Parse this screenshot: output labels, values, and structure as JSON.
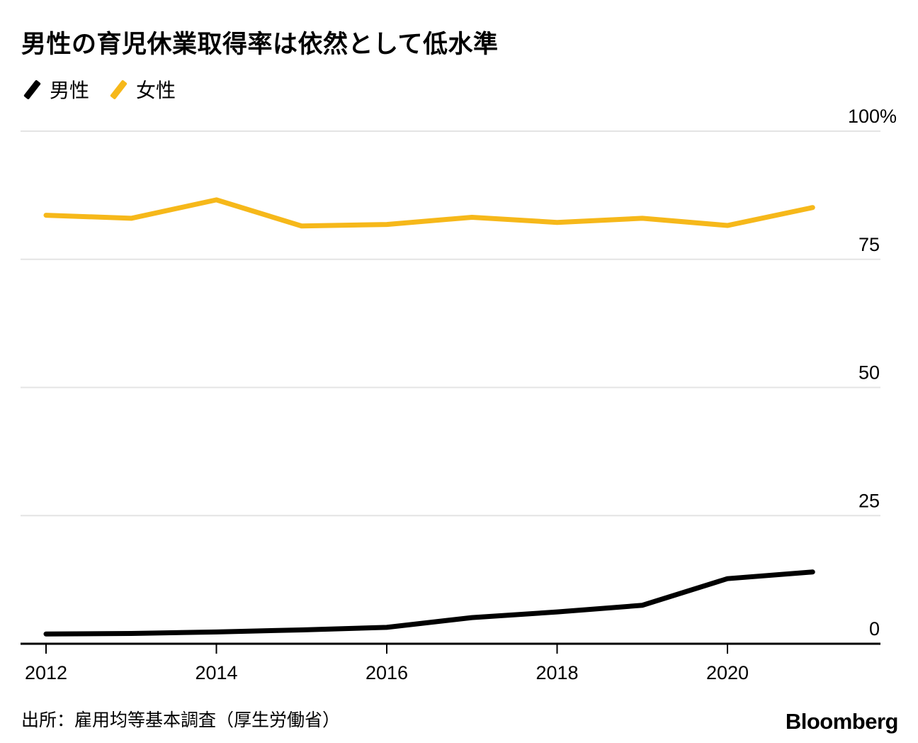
{
  "chart_data": {
    "type": "line",
    "title": "男性の育児休業取得率は依然として低水準",
    "x": [
      2012,
      2013,
      2014,
      2015,
      2016,
      2017,
      2018,
      2019,
      2020,
      2021
    ],
    "series": [
      {
        "name": "男性",
        "color": "#000000",
        "values": [
          1.9,
          2.0,
          2.3,
          2.7,
          3.2,
          5.1,
          6.2,
          7.5,
          12.7,
          14.0
        ]
      },
      {
        "name": "女性",
        "color": "#F6B81A",
        "values": [
          83.6,
          83.0,
          86.6,
          81.5,
          81.8,
          83.2,
          82.2,
          83.0,
          81.6,
          85.1
        ]
      }
    ],
    "xlabel": "",
    "ylabel": "",
    "ylim": [
      0,
      100
    ],
    "yticks": [
      0,
      25,
      50,
      75,
      100
    ],
    "ytick_labels": [
      "0",
      "25",
      "50",
      "75",
      "100%"
    ],
    "xticks": [
      2012,
      2014,
      2016,
      2018,
      2020
    ],
    "xtick_labels": [
      "2012",
      "2014",
      "2016",
      "2018",
      "2020"
    ],
    "grid": true,
    "legend_position": "top-left",
    "axis_color": "#000000",
    "grid_color": "#e4e4e4"
  },
  "source": "出所：雇用均等基本調査（厚生労働省）",
  "brand": "Bloomberg"
}
